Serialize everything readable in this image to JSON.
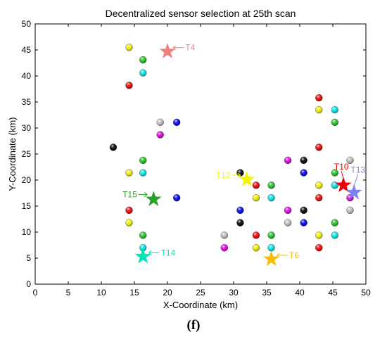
{
  "caption": "(f)",
  "chart_data": {
    "type": "scatter",
    "title": "Decentralized sensor selection at 25th scan",
    "xlabel": "X-Coordinate (km)",
    "ylabel": "Y-Coordinate (km)",
    "xlim": [
      0,
      50
    ],
    "ylim": [
      0,
      50
    ],
    "xticks": [
      0,
      5,
      10,
      15,
      20,
      25,
      30,
      35,
      40,
      45,
      50
    ],
    "yticks": [
      0,
      5,
      10,
      15,
      20,
      25,
      30,
      35,
      40,
      45,
      50
    ],
    "grid": false,
    "sensors": [
      {
        "x": 14.2,
        "y": 45.5,
        "color": "#f0f000"
      },
      {
        "x": 16.3,
        "y": 43.1,
        "color": "#22c322"
      },
      {
        "x": 16.3,
        "y": 40.6,
        "color": "#00e5e5"
      },
      {
        "x": 14.2,
        "y": 38.2,
        "color": "#ee0000"
      },
      {
        "x": 18.9,
        "y": 31.1,
        "color": "#bdbdbd"
      },
      {
        "x": 21.4,
        "y": 31.1,
        "color": "#0000ee"
      },
      {
        "x": 18.9,
        "y": 28.7,
        "color": "#e000e0"
      },
      {
        "x": 11.8,
        "y": 26.3,
        "color": "#000000"
      },
      {
        "x": 16.3,
        "y": 23.8,
        "color": "#22c322"
      },
      {
        "x": 14.2,
        "y": 21.4,
        "color": "#f0f000"
      },
      {
        "x": 16.3,
        "y": 21.4,
        "color": "#00e5e5"
      },
      {
        "x": 21.4,
        "y": 16.6,
        "color": "#0000ee"
      },
      {
        "x": 14.2,
        "y": 14.2,
        "color": "#ee0000"
      },
      {
        "x": 14.2,
        "y": 11.8,
        "color": "#f0f000"
      },
      {
        "x": 16.3,
        "y": 9.4,
        "color": "#22c322"
      },
      {
        "x": 16.3,
        "y": 7.0,
        "color": "#00e5e5"
      },
      {
        "x": 28.6,
        "y": 9.4,
        "color": "#bdbdbd"
      },
      {
        "x": 28.6,
        "y": 7.0,
        "color": "#e000e0"
      },
      {
        "x": 31.0,
        "y": 21.4,
        "color": "#000000"
      },
      {
        "x": 33.4,
        "y": 19.0,
        "color": "#ee0000"
      },
      {
        "x": 35.7,
        "y": 19.0,
        "color": "#22c322"
      },
      {
        "x": 33.4,
        "y": 16.6,
        "color": "#f0f000"
      },
      {
        "x": 35.7,
        "y": 16.6,
        "color": "#00e5e5"
      },
      {
        "x": 31.0,
        "y": 14.2,
        "color": "#0000ee"
      },
      {
        "x": 31.0,
        "y": 11.8,
        "color": "#000000"
      },
      {
        "x": 33.4,
        "y": 9.4,
        "color": "#ee0000"
      },
      {
        "x": 35.7,
        "y": 9.4,
        "color": "#22c322"
      },
      {
        "x": 33.4,
        "y": 7.0,
        "color": "#f0f000"
      },
      {
        "x": 35.7,
        "y": 7.0,
        "color": "#00e5e5"
      },
      {
        "x": 38.2,
        "y": 23.8,
        "color": "#e000e0"
      },
      {
        "x": 40.6,
        "y": 23.8,
        "color": "#000000"
      },
      {
        "x": 40.6,
        "y": 21.4,
        "color": "#0000ee"
      },
      {
        "x": 38.2,
        "y": 14.2,
        "color": "#e000e0"
      },
      {
        "x": 40.6,
        "y": 14.2,
        "color": "#000000"
      },
      {
        "x": 38.2,
        "y": 11.8,
        "color": "#bdbdbd"
      },
      {
        "x": 40.6,
        "y": 11.8,
        "color": "#0000ee"
      },
      {
        "x": 42.9,
        "y": 35.8,
        "color": "#ee0000"
      },
      {
        "x": 42.9,
        "y": 33.5,
        "color": "#f0f000"
      },
      {
        "x": 45.3,
        "y": 33.5,
        "color": "#00e5e5"
      },
      {
        "x": 45.3,
        "y": 31.1,
        "color": "#22c322"
      },
      {
        "x": 42.9,
        "y": 26.3,
        "color": "#ee0000"
      },
      {
        "x": 45.3,
        "y": 21.4,
        "color": "#22c322"
      },
      {
        "x": 42.9,
        "y": 19.0,
        "color": "#f0f000"
      },
      {
        "x": 45.3,
        "y": 19.0,
        "color": "#00e5e5"
      },
      {
        "x": 42.9,
        "y": 16.6,
        "color": "#ee0000"
      },
      {
        "x": 47.6,
        "y": 23.8,
        "color": "#bdbdbd"
      },
      {
        "x": 47.6,
        "y": 16.6,
        "color": "#e000e0"
      },
      {
        "x": 47.6,
        "y": 14.2,
        "color": "#bdbdbd"
      },
      {
        "x": 45.3,
        "y": 11.8,
        "color": "#22c322"
      },
      {
        "x": 42.9,
        "y": 9.4,
        "color": "#f0f000"
      },
      {
        "x": 45.3,
        "y": 9.4,
        "color": "#00e5e5"
      },
      {
        "x": 42.9,
        "y": 7.0,
        "color": "#ee0000"
      }
    ],
    "targets": [
      {
        "label": "T4",
        "x": 20.0,
        "y": 44.7,
        "color": "#f08080",
        "label_side": "right",
        "label_dx": 2.7,
        "label_dy": 0.2
      },
      {
        "label": "T15",
        "x": 17.9,
        "y": 16.3,
        "color": "#2ca02c",
        "label_side": "left",
        "label_dx": -2.5,
        "label_dy": 0.4
      },
      {
        "label": "T14",
        "x": 16.3,
        "y": 5.3,
        "color": "#00e6b8",
        "label_side": "right",
        "label_dx": 2.7,
        "label_dy": 0.2
      },
      {
        "label": "T12",
        "x": 32.0,
        "y": 20.1,
        "color": "#f5f500",
        "label_side": "left",
        "label_dx": -2.5,
        "label_dy": 0.3
      },
      {
        "label": "T6",
        "x": 35.7,
        "y": 4.8,
        "color": "#f5bf00",
        "label_side": "right",
        "label_dx": 2.7,
        "label_dy": 0.2
      },
      {
        "label": "T10",
        "x": 46.6,
        "y": 19.0,
        "color": "#ee0000",
        "label_side": "above",
        "label_dx": -0.3,
        "label_dy": 3.0
      },
      {
        "label": "T13",
        "x": 48.2,
        "y": 17.6,
        "color": "#8080f0",
        "label_side": "above",
        "label_dx": 0.6,
        "label_dy": 3.8
      }
    ]
  }
}
